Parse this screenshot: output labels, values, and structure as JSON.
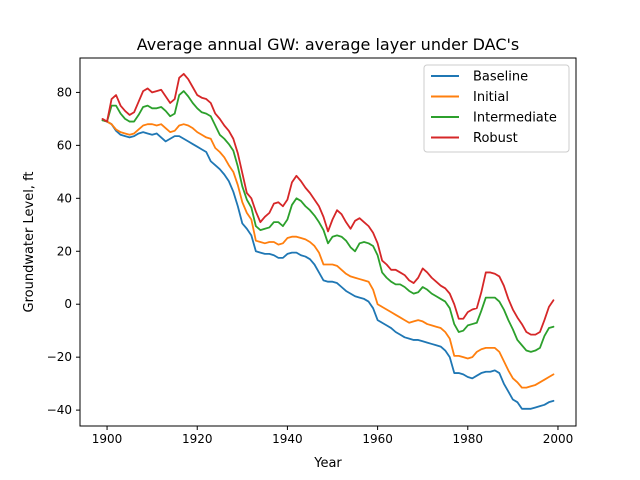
{
  "chart_data": {
    "type": "line",
    "title": "Average annual GW: average layer under DAC's",
    "xlabel": "Year",
    "ylabel": "Groundwater Level, ft",
    "xlim": [
      1894,
      2004
    ],
    "ylim": [
      -46,
      93
    ],
    "xticks": [
      1900,
      1920,
      1940,
      1960,
      1980,
      2000
    ],
    "yticks": [
      -40,
      -20,
      0,
      20,
      40,
      60,
      80
    ],
    "grid": false,
    "legend_position": "upper right",
    "x": [
      1899,
      1900,
      1901,
      1902,
      1903,
      1904,
      1905,
      1906,
      1907,
      1908,
      1909,
      1910,
      1911,
      1912,
      1913,
      1914,
      1915,
      1916,
      1917,
      1918,
      1919,
      1920,
      1921,
      1922,
      1923,
      1924,
      1925,
      1926,
      1927,
      1928,
      1929,
      1930,
      1931,
      1932,
      1933,
      1934,
      1935,
      1936,
      1937,
      1938,
      1939,
      1940,
      1941,
      1942,
      1943,
      1944,
      1945,
      1946,
      1947,
      1948,
      1949,
      1950,
      1951,
      1952,
      1953,
      1954,
      1955,
      1956,
      1957,
      1958,
      1959,
      1960,
      1961,
      1962,
      1963,
      1964,
      1965,
      1966,
      1967,
      1968,
      1969,
      1970,
      1971,
      1972,
      1973,
      1974,
      1975,
      1976,
      1977,
      1978,
      1979,
      1980,
      1981,
      1982,
      1983,
      1984,
      1985,
      1986,
      1987,
      1988,
      1989,
      1990,
      1991,
      1992,
      1993,
      1994,
      1995,
      1996,
      1997,
      1998,
      1999
    ],
    "series": [
      {
        "name": "Baseline",
        "color": "#1f77b4",
        "values": [
          69.5,
          69,
          68,
          65.5,
          64,
          63.5,
          63,
          63.5,
          64.5,
          65,
          64.5,
          64,
          64.5,
          63,
          61.5,
          62.5,
          63.5,
          63.5,
          62.5,
          61.5,
          60.5,
          59.5,
          58.5,
          57.5,
          54,
          52.5,
          51,
          49,
          46.5,
          42.5,
          37,
          30.5,
          28.5,
          26,
          20,
          19.5,
          19,
          19,
          18.5,
          17.5,
          17.5,
          19,
          19.5,
          19.5,
          18.5,
          18,
          17,
          15,
          12,
          9,
          8.5,
          8.5,
          8,
          6.5,
          5,
          4,
          3,
          2.5,
          2,
          1,
          -1.5,
          -6,
          -7,
          -8,
          -9,
          -10.5,
          -11.5,
          -12.5,
          -13,
          -13.5,
          -13.5,
          -14,
          -14.5,
          -15,
          -15.5,
          -16,
          -17.5,
          -20,
          -26,
          -26,
          -26.5,
          -27.5,
          -28,
          -27,
          -26,
          -25.5,
          -25.5,
          -25,
          -26,
          -30,
          -33,
          -36,
          -37,
          -39.5,
          -39.5,
          -39.5,
          -39,
          -38.5,
          -38,
          -37,
          -36.5
        ]
      },
      {
        "name": "Initial",
        "color": "#ff7f0e",
        "values": [
          69.5,
          69,
          68,
          66,
          65,
          64.5,
          64,
          64.5,
          66,
          67.5,
          68,
          68,
          67.5,
          68,
          66.5,
          65,
          65.5,
          67.5,
          68,
          67.5,
          66.5,
          65,
          64,
          63,
          62.5,
          59,
          57.5,
          55.5,
          52.5,
          50,
          45,
          38.5,
          34.5,
          32,
          24,
          23.5,
          23,
          23.5,
          23.5,
          22.5,
          23,
          25,
          25.5,
          25.5,
          25,
          24.5,
          23.5,
          22,
          19.5,
          15,
          15,
          15,
          14.5,
          13,
          11.5,
          10.5,
          10,
          9.5,
          9,
          8.5,
          5.5,
          0,
          -1,
          -2,
          -3,
          -4,
          -5,
          -6,
          -7,
          -6.5,
          -6,
          -6.5,
          -7.5,
          -8,
          -8.5,
          -9,
          -10.5,
          -13,
          -19.5,
          -19.5,
          -20,
          -20.5,
          -20,
          -18,
          -17,
          -16.5,
          -16.5,
          -16.5,
          -18,
          -21.5,
          -25,
          -28,
          -29.5,
          -31.5,
          -31.5,
          -31,
          -30.5,
          -29.5,
          -28.5,
          -27.5,
          -26.5
        ]
      },
      {
        "name": "Intermediate",
        "color": "#2ca02c",
        "values": [
          69.5,
          69,
          75,
          75,
          72,
          70,
          69,
          69,
          71.5,
          74.5,
          75,
          74,
          74,
          74.5,
          73,
          71,
          72,
          79,
          80.5,
          78.5,
          76,
          74,
          72.5,
          72,
          71,
          67.5,
          64,
          62.5,
          60.5,
          58,
          52,
          44.5,
          39.5,
          36.5,
          29.5,
          28,
          28.5,
          29,
          31,
          31,
          29.5,
          32,
          37.5,
          40,
          39,
          37,
          35.5,
          33.5,
          31,
          28,
          23,
          25.5,
          26,
          25.5,
          24,
          21.5,
          20,
          23,
          23.5,
          23,
          22,
          18.5,
          12,
          10,
          8.5,
          7.5,
          7.5,
          6.5,
          5,
          4,
          4.5,
          6.5,
          5.5,
          4,
          3,
          2,
          1,
          -1.5,
          -7.5,
          -10.5,
          -10,
          -8,
          -7.5,
          -7,
          -2.5,
          2.5,
          2.5,
          2.5,
          1,
          -2,
          -6,
          -9.5,
          -13.5,
          -15.5,
          -17.5,
          -18,
          -17.5,
          -16.5,
          -12,
          -9,
          -8.5
        ]
      },
      {
        "name": "Robust",
        "color": "#d62728",
        "values": [
          70,
          69,
          77.5,
          79,
          75,
          73,
          71.5,
          72.5,
          76.5,
          80.5,
          81.5,
          80,
          80.5,
          81,
          78.5,
          76,
          77.5,
          85.5,
          87,
          85,
          82,
          79,
          78,
          77.5,
          76,
          72,
          70,
          67.5,
          65.5,
          62.5,
          57,
          49.5,
          42,
          40,
          35,
          31,
          33,
          34.5,
          38,
          38.5,
          37,
          39.5,
          46,
          48.5,
          46.5,
          44,
          42,
          39.5,
          37,
          33,
          27.5,
          32,
          35.5,
          34,
          31,
          28.5,
          31.5,
          32.5,
          31,
          29.5,
          27,
          23,
          16.5,
          15,
          13,
          13,
          12,
          11,
          9,
          8,
          10,
          13.5,
          12,
          10,
          8.5,
          7,
          6,
          4,
          0,
          -5.5,
          -5.5,
          -3,
          -2,
          -1.5,
          4.5,
          12,
          12,
          11.5,
          10.5,
          7,
          2,
          -2,
          -5,
          -7.5,
          -10.5,
          -11.5,
          -11.5,
          -10.5,
          -6,
          -1,
          1.5
        ]
      }
    ]
  }
}
